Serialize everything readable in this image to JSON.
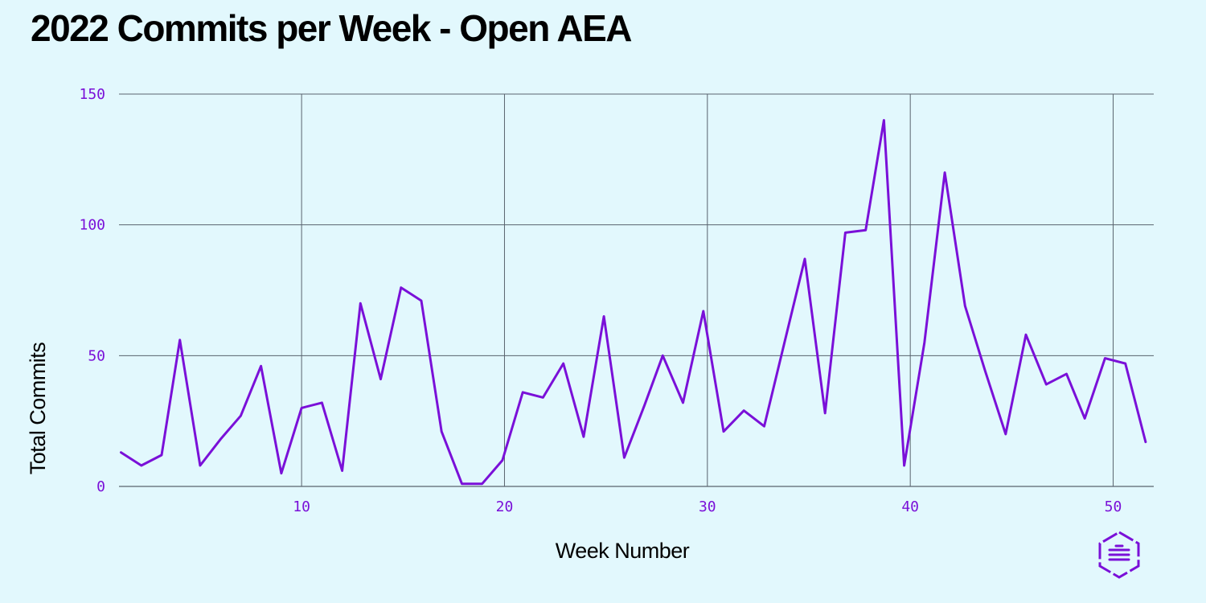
{
  "chart_data": {
    "type": "line",
    "title": "2022 Commits per Week - Open AEA",
    "xlabel": "Week Number",
    "ylabel": "Total Commits",
    "xlim": [
      1,
      52
    ],
    "ylim": [
      0,
      150
    ],
    "x_ticks": [
      10,
      20,
      30,
      40,
      50
    ],
    "y_ticks": [
      0,
      50,
      100,
      150
    ],
    "grid": true,
    "series": [
      {
        "color": "#7a10d8",
        "x": [
          1.1,
          2.1,
          3.1,
          4.0,
          5.0,
          6.0,
          7.0,
          8.0,
          9.0,
          10.0,
          11.0,
          12.0,
          12.9,
          13.9,
          14.9,
          15.9,
          16.9,
          17.9,
          18.9,
          19.9,
          20.9,
          21.9,
          22.9,
          23.9,
          24.9,
          25.9,
          26.9,
          27.8,
          28.8,
          29.8,
          30.8,
          31.8,
          32.8,
          33.8,
          34.8,
          35.8,
          36.8,
          37.8,
          38.7,
          39.7,
          40.7,
          41.7,
          42.7,
          43.7,
          44.7,
          45.7,
          46.7,
          47.7,
          48.6,
          49.6,
          50.6,
          51.6
        ],
        "y": [
          13,
          8,
          12,
          56,
          8,
          18,
          27,
          46,
          5,
          30,
          32,
          6,
          70,
          41,
          76,
          71,
          21,
          1,
          1,
          10,
          36,
          34,
          47,
          19,
          65,
          11,
          31,
          50,
          32,
          67,
          21,
          29,
          23,
          55,
          87,
          28,
          97,
          98,
          140,
          8,
          55,
          120,
          69,
          44,
          20,
          58,
          39,
          43,
          26,
          49,
          47,
          17
        ]
      }
    ]
  },
  "logo": {
    "icon": "hexagon-logo-icon",
    "color": "#7a10d8"
  }
}
